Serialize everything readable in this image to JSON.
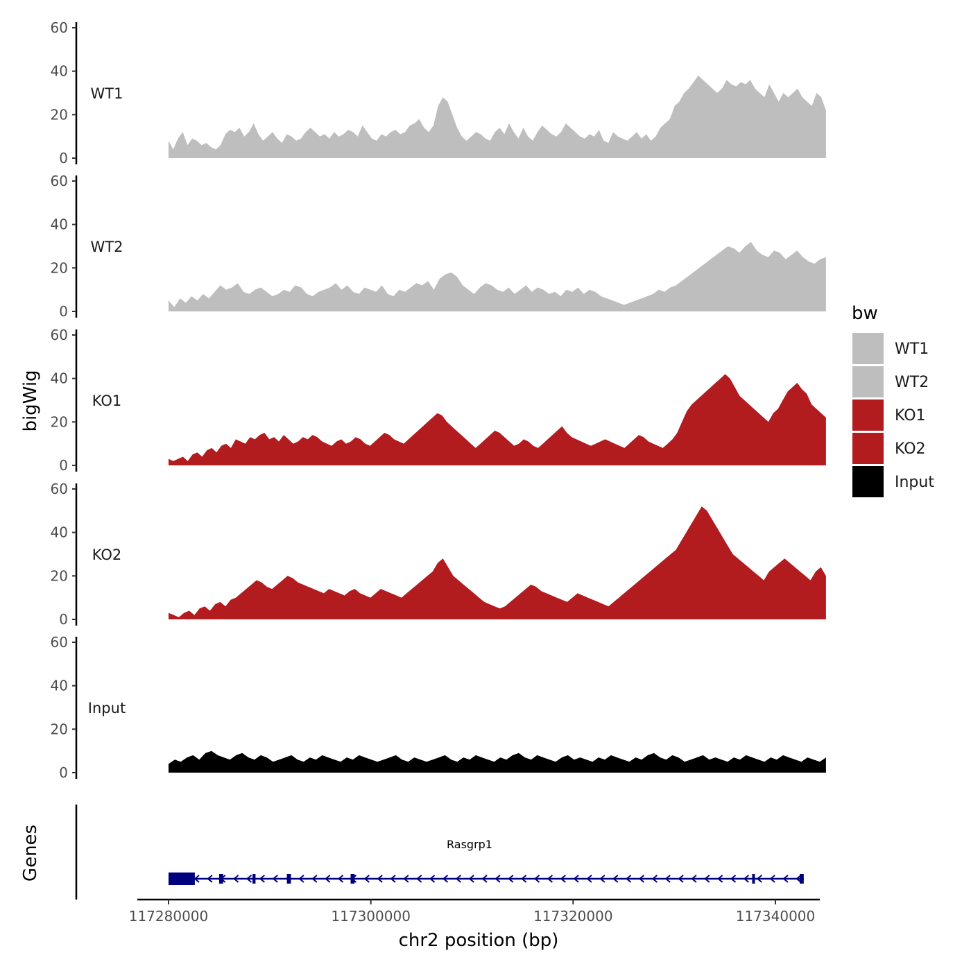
{
  "chart_data": {
    "type": "area",
    "ylabel": "bigWig",
    "xlabel": "chr2 position (bp)",
    "ylim": [
      0,
      60
    ],
    "y_ticks": [
      0,
      20,
      40,
      60
    ],
    "xlim": [
      117276000,
      117345000
    ],
    "x_ticks": [
      117280000,
      117300000,
      117320000,
      117340000
    ],
    "x_tick_labels": [
      "117280000",
      "117300000",
      "117320000",
      "117340000"
    ],
    "x_start": 117280000,
    "x_end": 117345000,
    "genes_label": "Genes",
    "legend": {
      "title": "bw",
      "items": [
        {
          "label": "WT1",
          "color": "#bebebe"
        },
        {
          "label": "WT2",
          "color": "#bebebe"
        },
        {
          "label": "KO1",
          "color": "#b21c1f"
        },
        {
          "label": "KO2",
          "color": "#b21c1f"
        },
        {
          "label": "Input",
          "color": "#000000"
        }
      ]
    },
    "series": [
      {
        "name": "WT1",
        "color": "#bebebe",
        "values": [
          8,
          4,
          9,
          12,
          6,
          9,
          8,
          6,
          7,
          5,
          4,
          6,
          11,
          13,
          12,
          14,
          10,
          12,
          16,
          11,
          8,
          10,
          12,
          9,
          7,
          11,
          10,
          8,
          9,
          12,
          14,
          12,
          10,
          11,
          9,
          12,
          10,
          11,
          13,
          12,
          10,
          15,
          12,
          9,
          8,
          11,
          10,
          12,
          13,
          11,
          12,
          15,
          16,
          18,
          14,
          12,
          15,
          24,
          28,
          26,
          20,
          14,
          10,
          8,
          10,
          12,
          11,
          9,
          8,
          12,
          14,
          11,
          16,
          12,
          9,
          14,
          10,
          8,
          12,
          15,
          13,
          11,
          10,
          12,
          16,
          14,
          12,
          10,
          9,
          11,
          10,
          13,
          8,
          7,
          12,
          10,
          9,
          8,
          10,
          12,
          9,
          11,
          8,
          10,
          14,
          16,
          18,
          24,
          26,
          30,
          32,
          35,
          38,
          36,
          34,
          32,
          30,
          32,
          36,
          34,
          33,
          35,
          34,
          36,
          32,
          30,
          28,
          34,
          30,
          26,
          30,
          28,
          30,
          32,
          28,
          26,
          24,
          30,
          28,
          22
        ]
      },
      {
        "name": "WT2",
        "color": "#bebebe",
        "values": [
          5,
          2,
          6,
          4,
          7,
          5,
          8,
          6,
          9,
          12,
          10,
          11,
          13,
          9,
          8,
          10,
          11,
          9,
          7,
          8,
          10,
          9,
          12,
          11,
          8,
          7,
          9,
          10,
          11,
          13,
          10,
          12,
          9,
          8,
          11,
          10,
          9,
          12,
          8,
          7,
          10,
          9,
          11,
          13,
          12,
          14,
          10,
          15,
          17,
          18,
          16,
          12,
          10,
          8,
          11,
          13,
          12,
          10,
          9,
          11,
          8,
          10,
          12,
          9,
          11,
          10,
          8,
          9,
          7,
          10,
          9,
          11,
          8,
          10,
          9,
          7,
          6,
          5,
          4,
          3,
          4,
          5,
          6,
          7,
          8,
          10,
          9,
          11,
          12,
          14,
          16,
          18,
          20,
          22,
          24,
          26,
          28,
          30,
          29,
          27,
          30,
          32,
          28,
          26,
          25,
          28,
          27,
          24,
          26,
          28,
          25,
          23,
          22,
          24,
          25
        ]
      },
      {
        "name": "KO1",
        "color": "#b21c1f",
        "values": [
          3,
          2,
          3,
          4,
          2,
          5,
          6,
          4,
          7,
          8,
          6,
          9,
          10,
          8,
          12,
          11,
          10,
          13,
          12,
          14,
          15,
          12,
          13,
          11,
          14,
          12,
          10,
          11,
          13,
          12,
          14,
          13,
          11,
          10,
          9,
          11,
          12,
          10,
          11,
          13,
          12,
          10,
          9,
          11,
          13,
          15,
          14,
          12,
          11,
          10,
          12,
          14,
          16,
          18,
          20,
          22,
          24,
          23,
          20,
          18,
          16,
          14,
          12,
          10,
          8,
          10,
          12,
          14,
          16,
          15,
          13,
          11,
          9,
          10,
          12,
          11,
          9,
          8,
          10,
          12,
          14,
          16,
          18,
          15,
          13,
          12,
          11,
          10,
          9,
          10,
          11,
          12,
          11,
          10,
          9,
          8,
          10,
          12,
          14,
          13,
          11,
          10,
          9,
          8,
          10,
          12,
          15,
          20,
          25,
          28,
          30,
          32,
          34,
          36,
          38,
          40,
          42,
          40,
          36,
          32,
          30,
          28,
          26,
          24,
          22,
          20,
          24,
          26,
          30,
          34,
          36,
          38,
          35,
          33,
          28,
          26,
          24,
          22
        ]
      },
      {
        "name": "KO2",
        "color": "#b21c1f",
        "values": [
          3,
          2,
          1,
          3,
          4,
          2,
          5,
          6,
          4,
          7,
          8,
          6,
          9,
          10,
          12,
          14,
          16,
          18,
          17,
          15,
          14,
          16,
          18,
          20,
          19,
          17,
          16,
          15,
          14,
          13,
          12,
          14,
          13,
          12,
          11,
          13,
          14,
          12,
          11,
          10,
          12,
          14,
          13,
          12,
          11,
          10,
          12,
          14,
          16,
          18,
          20,
          22,
          26,
          28,
          24,
          20,
          18,
          16,
          14,
          12,
          10,
          8,
          7,
          6,
          5,
          6,
          8,
          10,
          12,
          14,
          16,
          15,
          13,
          12,
          11,
          10,
          9,
          8,
          10,
          12,
          11,
          10,
          9,
          8,
          7,
          6,
          8,
          10,
          12,
          14,
          16,
          18,
          20,
          22,
          24,
          26,
          28,
          30,
          32,
          36,
          40,
          44,
          48,
          52,
          50,
          46,
          42,
          38,
          34,
          30,
          28,
          26,
          24,
          22,
          20,
          18,
          22,
          24,
          26,
          28,
          26,
          24,
          22,
          20,
          18,
          22,
          24,
          20
        ]
      },
      {
        "name": "Input",
        "color": "#000000",
        "values": [
          4,
          6,
          5,
          7,
          8,
          6,
          9,
          10,
          8,
          7,
          6,
          8,
          9,
          7,
          6,
          8,
          7,
          5,
          6,
          7,
          8,
          6,
          5,
          7,
          6,
          8,
          7,
          6,
          5,
          7,
          6,
          8,
          7,
          6,
          5,
          6,
          7,
          8,
          6,
          5,
          7,
          6,
          5,
          6,
          7,
          8,
          6,
          5,
          7,
          6,
          8,
          7,
          6,
          5,
          7,
          6,
          8,
          9,
          7,
          6,
          8,
          7,
          6,
          5,
          7,
          8,
          6,
          7,
          6,
          5,
          7,
          6,
          8,
          7,
          6,
          5,
          7,
          6,
          8,
          9,
          7,
          6,
          8,
          7,
          5,
          6,
          7,
          8,
          6,
          7,
          6,
          5,
          7,
          6,
          8,
          7,
          6,
          5,
          7,
          6,
          8,
          7,
          6,
          5,
          7,
          6,
          5,
          7
        ]
      }
    ],
    "gene": {
      "name": "Rasgrp1",
      "strand": "-",
      "color": "#00007f",
      "start": 117280000,
      "end": 117342800,
      "exons": [
        [
          117280000,
          117282600
        ],
        [
          117285000,
          117285400
        ],
        [
          117288300,
          117288600
        ],
        [
          117291700,
          117292100
        ],
        [
          117298000,
          117298400
        ],
        [
          117337700,
          117337900
        ],
        [
          117342400,
          117342800
        ]
      ]
    }
  }
}
